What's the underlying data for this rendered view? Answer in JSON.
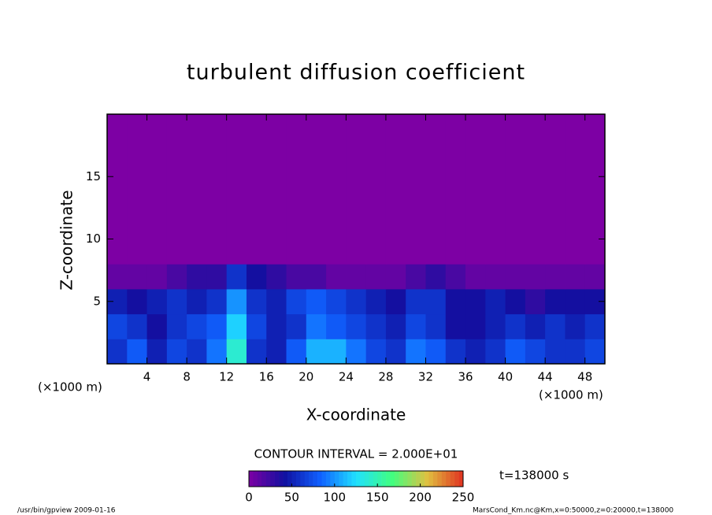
{
  "chart_data": {
    "type": "heatmap",
    "title": "turbulent diffusion coefficient",
    "x_label": "X-coordinate",
    "y_label": "Z-coordinate",
    "x_unit": "(×1000 m)",
    "y_unit": "(×1000 m)",
    "xlim": [
      0,
      50
    ],
    "ylim": [
      0,
      20
    ],
    "xticks": [
      4,
      8,
      12,
      16,
      20,
      24,
      28,
      32,
      36,
      40,
      44,
      48
    ],
    "yticks": [
      5,
      10,
      15
    ],
    "xbins": [
      0,
      2,
      4,
      6,
      8,
      10,
      12,
      14,
      16,
      18,
      20,
      22,
      24,
      26,
      28,
      30,
      32,
      34,
      36,
      38,
      40,
      42,
      44,
      46,
      48,
      50
    ],
    "ybins": [
      0,
      2,
      4,
      6,
      8,
      20
    ],
    "values": [
      [
        60,
        80,
        50,
        70,
        60,
        90,
        140,
        60,
        50,
        80,
        110,
        110,
        90,
        70,
        60,
        90,
        80,
        60,
        50,
        60,
        80,
        70,
        60,
        60,
        70
      ],
      [
        70,
        60,
        40,
        60,
        70,
        80,
        120,
        70,
        50,
        60,
        90,
        80,
        70,
        60,
        50,
        70,
        60,
        40,
        40,
        50,
        60,
        50,
        60,
        50,
        60
      ],
      [
        50,
        40,
        50,
        60,
        50,
        60,
        100,
        60,
        50,
        70,
        80,
        70,
        60,
        50,
        40,
        60,
        60,
        40,
        40,
        50,
        40,
        30,
        40,
        40,
        40
      ],
      [
        10,
        10,
        10,
        20,
        30,
        30,
        60,
        40,
        30,
        20,
        20,
        10,
        10,
        10,
        10,
        20,
        30,
        20,
        10,
        10,
        10,
        10,
        10,
        10,
        10
      ],
      [
        0,
        0,
        0,
        0,
        0,
        0,
        0,
        0,
        0,
        0,
        0,
        0,
        0,
        0,
        0,
        0,
        0,
        0,
        0,
        0,
        0,
        0,
        0,
        0,
        0
      ]
    ],
    "clim": [
      0,
      250
    ],
    "colorbar_ticks": [
      0,
      50,
      100,
      150,
      200,
      250
    ],
    "colormap": [
      "#7d00a4",
      "#1010a0",
      "#1060ff",
      "#20e0ff",
      "#40ff80",
      "#e0c040",
      "#e03020"
    ],
    "contour_interval_label": "CONTOUR INTERVAL = 2.000E+01",
    "time_label": "t=138000 s",
    "footer_left": "/usr/bin/gpview   2009-01-16",
    "footer_right": "MarsCond_Km.nc@Km,x=0:50000,z=0:20000,t=138000"
  }
}
